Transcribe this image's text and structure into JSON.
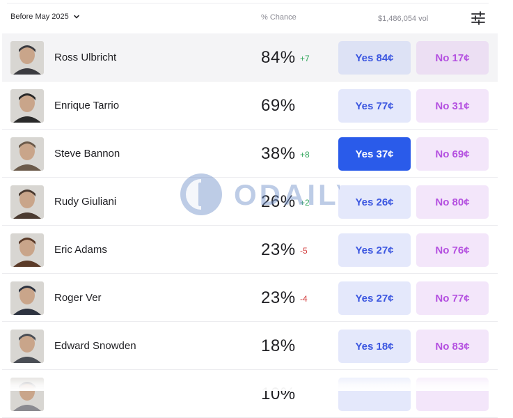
{
  "header": {
    "filter_label": "Before May 2025",
    "chance_label": "% Chance",
    "volume": "$1,486,054 vol"
  },
  "rows": [
    {
      "name": "Ross Ulbricht",
      "pct": "84%",
      "delta": "+7",
      "dir": "up",
      "yes": "Yes 84¢",
      "no": "No 17¢",
      "avatar_color": "#3b3b40"
    },
    {
      "name": "Enrique Tarrio",
      "pct": "69%",
      "delta": "",
      "dir": "",
      "yes": "Yes 77¢",
      "no": "No 31¢",
      "avatar_color": "#2a2a2a"
    },
    {
      "name": "Steve Bannon",
      "pct": "38%",
      "delta": "+8",
      "dir": "up",
      "yes": "Yes 37¢",
      "no": "No 69¢",
      "avatar_color": "#6b5a4a"
    },
    {
      "name": "Rudy Giuliani",
      "pct": "26%",
      "delta": "+2",
      "dir": "up",
      "yes": "Yes 26¢",
      "no": "No 80¢",
      "avatar_color": "#4a3a30"
    },
    {
      "name": "Eric Adams",
      "pct": "23%",
      "delta": "-5",
      "dir": "down",
      "yes": "Yes 27¢",
      "no": "No 76¢",
      "avatar_color": "#5a3a28"
    },
    {
      "name": "Roger Ver",
      "pct": "23%",
      "delta": "-4",
      "dir": "down",
      "yes": "Yes 27¢",
      "no": "No 77¢",
      "avatar_color": "#2d3340"
    },
    {
      "name": "Edward Snowden",
      "pct": "18%",
      "delta": "",
      "dir": "",
      "yes": "Yes 18¢",
      "no": "No 83¢",
      "avatar_color": "#4a4e55"
    },
    {
      "name": "",
      "pct": "10%",
      "delta": "",
      "dir": "",
      "yes": "",
      "no": "",
      "avatar_color": "#8a8a90"
    }
  ],
  "watermark": "ODAILY"
}
